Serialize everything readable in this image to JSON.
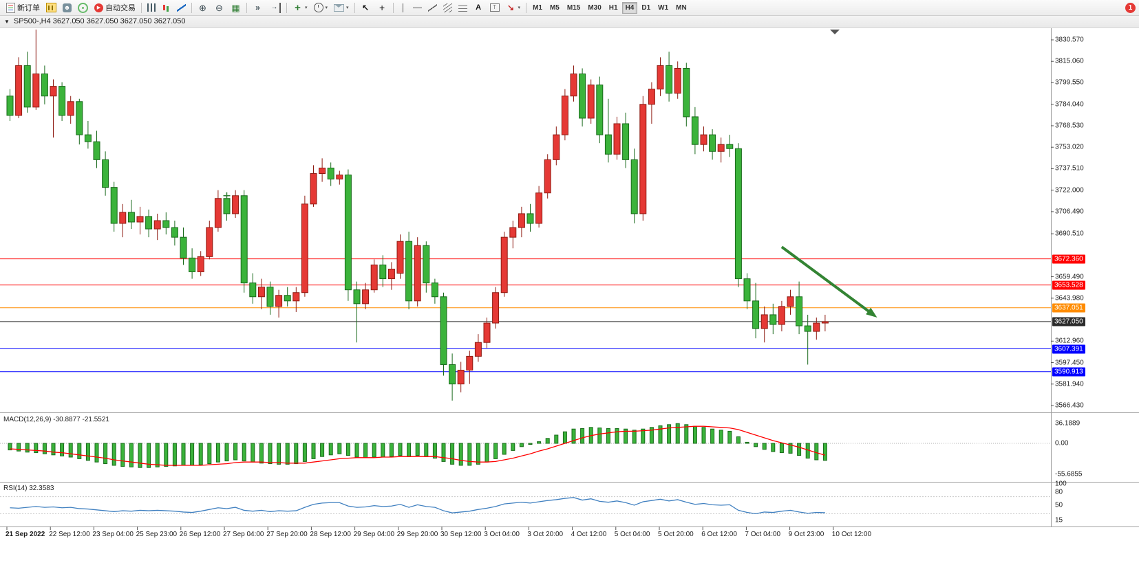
{
  "toolbar": {
    "groups": [
      {
        "name": "trade-group",
        "items": [
          {
            "name": "new-order-button",
            "icon": "new-order",
            "label": "新订单"
          },
          {
            "name": "open-chart-button",
            "icon": "chart-window"
          },
          {
            "name": "market-watch-button",
            "icon": "profile"
          },
          {
            "name": "community-button",
            "icon": "community"
          },
          {
            "name": "algo-trading-button",
            "icon": "autotrade",
            "label": "自动交易"
          }
        ]
      },
      {
        "name": "chart-type-group",
        "items": [
          {
            "name": "bar-chart-button",
            "icon": "bars"
          },
          {
            "name": "candle-chart-button",
            "icon": "candles"
          },
          {
            "name": "line-chart-button",
            "icon": "line"
          }
        ]
      },
      {
        "name": "zoom-group",
        "items": [
          {
            "name": "zoom-in-button",
            "icon": "zoom-in"
          },
          {
            "name": "zoom-out-button",
            "icon": "zoom-out"
          },
          {
            "name": "tile-windows-button",
            "icon": "tiles"
          }
        ]
      },
      {
        "name": "scroll-group",
        "items": [
          {
            "name": "auto-scroll-button",
            "icon": "autoscroll"
          },
          {
            "name": "chart-shift-button",
            "icon": "shift"
          }
        ]
      },
      {
        "name": "insert-group",
        "items": [
          {
            "name": "indicators-button",
            "icon": "indicators",
            "caret": true
          },
          {
            "name": "periods-button",
            "icon": "clock",
            "caret": true
          },
          {
            "name": "templates-button",
            "icon": "mail",
            "caret": true
          }
        ]
      },
      {
        "name": "cursor-group",
        "items": [
          {
            "name": "cursor-button",
            "icon": "cursor"
          },
          {
            "name": "crosshair-button",
            "icon": "crosshair"
          }
        ]
      },
      {
        "name": "objects-group",
        "items": [
          {
            "name": "vertical-line-button",
            "icon": "vline"
          },
          {
            "name": "horizontal-line-button",
            "icon": "hline"
          },
          {
            "name": "trendline-button",
            "icon": "trendline"
          },
          {
            "name": "channel-button",
            "icon": "channel"
          },
          {
            "name": "fibonacci-button",
            "icon": "fibo"
          },
          {
            "name": "text-button",
            "icon": "text"
          },
          {
            "name": "label-button",
            "icon": "label"
          },
          {
            "name": "shapes-button",
            "icon": "shapes",
            "caret": true
          }
        ]
      }
    ],
    "timeframes": {
      "items": [
        "M1",
        "M5",
        "M15",
        "M30",
        "H1",
        "H4",
        "D1",
        "W1",
        "MN"
      ],
      "active": "H4"
    },
    "notification_count": "1"
  },
  "chart": {
    "collapse_glyph": "▼",
    "title": "SP500-,H4  3627.050 3627.050 3627.050 3627.050"
  },
  "chart_data": {
    "type": "candlestick",
    "symbol": "SP500-",
    "timeframe": "H4",
    "ohlc_display": [
      "3627.050",
      "3627.050",
      "3627.050",
      "3627.050"
    ],
    "colors": {
      "up_fill": "#e53935",
      "up_stroke": "#8e1b12",
      "down_fill": "#3bb33b",
      "down_stroke": "#18691a",
      "macd_bar": "#3bb33b",
      "macd_signal": "#ff0000",
      "rsi_line": "#4080c0",
      "arrow": "#338433"
    },
    "price_axis": {
      "labels": [
        "3830.570",
        "3815.060",
        "3799.550",
        "3784.040",
        "3768.530",
        "3753.020",
        "3737.510",
        "3722.000",
        "3706.490",
        "3690.510",
        "3659.490",
        "3643.980",
        "3612.960",
        "3597.450",
        "3581.940",
        "3566.430"
      ],
      "top_value": 3830.57,
      "bottom_value": 3566.43
    },
    "hlines": [
      {
        "price": 3672.36,
        "label": "3672.360",
        "color": "#ff0000"
      },
      {
        "price": 3653.528,
        "label": "3653.528",
        "color": "#ff0000"
      },
      {
        "price": 3637.051,
        "label": "3637.051",
        "color": "#ff8c00"
      },
      {
        "price": 3627.05,
        "label": "3627.050",
        "color": "#2b2b2b",
        "role": "bid"
      },
      {
        "price": 3607.391,
        "label": "3607.391",
        "color": "#0000ff"
      },
      {
        "price": 3590.913,
        "label": "3590.913",
        "color": "#0000ff"
      }
    ],
    "candles": [
      [
        3790,
        3795,
        3772,
        3776
      ],
      [
        3776,
        3818,
        3774,
        3812
      ],
      [
        3812,
        3822,
        3778,
        3782
      ],
      [
        3782,
        3838,
        3780,
        3806
      ],
      [
        3806,
        3812,
        3784,
        3790
      ],
      [
        3790,
        3802,
        3760,
        3797
      ],
      [
        3797,
        3800,
        3772,
        3776
      ],
      [
        3776,
        3790,
        3770,
        3786
      ],
      [
        3786,
        3788,
        3755,
        3762
      ],
      [
        3762,
        3772,
        3752,
        3757
      ],
      [
        3757,
        3765,
        3738,
        3744
      ],
      [
        3744,
        3750,
        3718,
        3724
      ],
      [
        3724,
        3728,
        3692,
        3698
      ],
      [
        3698,
        3712,
        3688,
        3706
      ],
      [
        3706,
        3715,
        3694,
        3699
      ],
      [
        3699,
        3710,
        3690,
        3703
      ],
      [
        3703,
        3708,
        3688,
        3694
      ],
      [
        3694,
        3705,
        3686,
        3700
      ],
      [
        3700,
        3706,
        3690,
        3695
      ],
      [
        3695,
        3700,
        3682,
        3688
      ],
      [
        3688,
        3695,
        3668,
        3673
      ],
      [
        3673,
        3680,
        3658,
        3663
      ],
      [
        3663,
        3678,
        3660,
        3674
      ],
      [
        3674,
        3700,
        3672,
        3695
      ],
      [
        3695,
        3722,
        3692,
        3716
      ],
      [
        3716,
        3720,
        3700,
        3705
      ],
      [
        3705,
        3722,
        3702,
        3718
      ],
      [
        3718,
        3722,
        3648,
        3655
      ],
      [
        3655,
        3662,
        3640,
        3645
      ],
      [
        3645,
        3658,
        3636,
        3652
      ],
      [
        3652,
        3656,
        3632,
        3638
      ],
      [
        3638,
        3650,
        3630,
        3646
      ],
      [
        3646,
        3652,
        3638,
        3642
      ],
      [
        3642,
        3652,
        3634,
        3648
      ],
      [
        3648,
        3718,
        3645,
        3712
      ],
      [
        3712,
        3740,
        3710,
        3734
      ],
      [
        3734,
        3745,
        3728,
        3738
      ],
      [
        3738,
        3742,
        3725,
        3730
      ],
      [
        3730,
        3736,
        3726,
        3733
      ],
      [
        3733,
        3737,
        3642,
        3650
      ],
      [
        3650,
        3656,
        3612,
        3640
      ],
      [
        3640,
        3655,
        3636,
        3650
      ],
      [
        3650,
        3672,
        3648,
        3668
      ],
      [
        3668,
        3675,
        3652,
        3658
      ],
      [
        3658,
        3670,
        3650,
        3665
      ],
      [
        3662,
        3690,
        3658,
        3685
      ],
      [
        3685,
        3692,
        3636,
        3642
      ],
      [
        3642,
        3688,
        3638,
        3682
      ],
      [
        3682,
        3685,
        3648,
        3655
      ],
      [
        3655,
        3658,
        3640,
        3645
      ],
      [
        3645,
        3648,
        3588,
        3596
      ],
      [
        3596,
        3604,
        3570,
        3582
      ],
      [
        3582,
        3598,
        3576,
        3592
      ],
      [
        3592,
        3606,
        3582,
        3602
      ],
      [
        3602,
        3618,
        3598,
        3612
      ],
      [
        3612,
        3630,
        3608,
        3626
      ],
      [
        3626,
        3652,
        3622,
        3648
      ],
      [
        3648,
        3692,
        3645,
        3688
      ],
      [
        3688,
        3700,
        3680,
        3695
      ],
      [
        3695,
        3710,
        3688,
        3705
      ],
      [
        3705,
        3712,
        3692,
        3698
      ],
      [
        3698,
        3725,
        3695,
        3720
      ],
      [
        3720,
        3748,
        3716,
        3744
      ],
      [
        3744,
        3768,
        3740,
        3762
      ],
      [
        3762,
        3795,
        3758,
        3790
      ],
      [
        3790,
        3812,
        3786,
        3806
      ],
      [
        3806,
        3810,
        3768,
        3774
      ],
      [
        3774,
        3802,
        3770,
        3798
      ],
      [
        3798,
        3804,
        3756,
        3762
      ],
      [
        3762,
        3788,
        3742,
        3748
      ],
      [
        3748,
        3775,
        3744,
        3770
      ],
      [
        3770,
        3778,
        3738,
        3744
      ],
      [
        3744,
        3752,
        3698,
        3705
      ],
      [
        3705,
        3790,
        3700,
        3784
      ],
      [
        3784,
        3800,
        3770,
        3795
      ],
      [
        3795,
        3818,
        3790,
        3812
      ],
      [
        3812,
        3822,
        3786,
        3792
      ],
      [
        3792,
        3815,
        3788,
        3810
      ],
      [
        3810,
        3814,
        3768,
        3775
      ],
      [
        3775,
        3782,
        3748,
        3755
      ],
      [
        3755,
        3768,
        3750,
        3762
      ],
      [
        3762,
        3766,
        3744,
        3750
      ],
      [
        3750,
        3760,
        3742,
        3755
      ],
      [
        3755,
        3762,
        3746,
        3752
      ],
      [
        3752,
        3756,
        3652,
        3658
      ],
      [
        3658,
        3662,
        3636,
        3642
      ],
      [
        3642,
        3655,
        3615,
        3622
      ],
      [
        3622,
        3638,
        3612,
        3632
      ],
      [
        3632,
        3640,
        3618,
        3625
      ],
      [
        3625,
        3642,
        3620,
        3638
      ],
      [
        3638,
        3650,
        3632,
        3645
      ],
      [
        3645,
        3656,
        3618,
        3624
      ],
      [
        3624,
        3632,
        3596,
        3620
      ],
      [
        3620,
        3630,
        3614,
        3626
      ],
      [
        3626,
        3632,
        3620,
        3627.05
      ]
    ],
    "arrow": {
      "from": {
        "index": 89,
        "price": 3681
      },
      "to": {
        "index": 100,
        "price": 3630
      },
      "color": "#338433"
    },
    "cross_marker": {
      "index": 25,
      "price": 3718,
      "color": "#2e7d32"
    },
    "macd": {
      "label": "MACD(12,26,9) -30.8877 -21.5521",
      "axis_labels": [
        {
          "text": "36.1889",
          "value": 36.1889
        },
        {
          "text": "0.00",
          "value": 0
        },
        {
          "text": "-55.6855",
          "value": -55.6855
        }
      ],
      "values": [
        -12,
        -14,
        -16,
        -17,
        -19,
        -21,
        -23,
        -25,
        -28,
        -31,
        -34,
        -37,
        -40,
        -42,
        -43,
        -44,
        -44,
        -43,
        -42,
        -41,
        -40,
        -40,
        -39,
        -37,
        -34,
        -32,
        -30,
        -32,
        -34,
        -36,
        -37,
        -38,
        -38,
        -37,
        -33,
        -28,
        -24,
        -21,
        -19,
        -22,
        -25,
        -26,
        -25,
        -25,
        -24,
        -22,
        -24,
        -22,
        -24,
        -27,
        -33,
        -38,
        -40,
        -40,
        -38,
        -34,
        -28,
        -20,
        -13,
        -6,
        -2,
        3,
        9,
        15,
        21,
        26,
        27,
        29,
        28,
        27,
        27,
        26,
        24,
        26,
        29,
        32,
        34,
        36,
        34,
        31,
        29,
        26,
        24,
        22,
        12,
        2,
        -6,
        -11,
        -15,
        -17,
        -18,
        -22,
        -27,
        -30,
        -31
      ],
      "signal": [
        -10,
        -11,
        -12,
        -13,
        -14,
        -16,
        -17,
        -19,
        -21,
        -23,
        -25,
        -27,
        -30,
        -32,
        -34,
        -36,
        -38,
        -39,
        -40,
        -40,
        -40,
        -40,
        -40,
        -39,
        -38,
        -37,
        -35,
        -34,
        -34,
        -34,
        -35,
        -35,
        -36,
        -36,
        -36,
        -34,
        -32,
        -30,
        -28,
        -27,
        -26,
        -26,
        -26,
        -25,
        -25,
        -24,
        -24,
        -24,
        -24,
        -24,
        -26,
        -28,
        -31,
        -33,
        -34,
        -34,
        -33,
        -30,
        -27,
        -23,
        -19,
        -14,
        -10,
        -5,
        0,
        5,
        10,
        14,
        17,
        19,
        21,
        22,
        22,
        23,
        24,
        26,
        28,
        29,
        30,
        31,
        31,
        30,
        29,
        28,
        25,
        20,
        15,
        10,
        5,
        1,
        -3,
        -7,
        -12,
        -17,
        -21.5
      ]
    },
    "rsi": {
      "label": "RSI(14) 32.3583",
      "axis_labels": [
        {
          "text": "100",
          "value": 100
        },
        {
          "text": "80",
          "value": 80
        },
        {
          "text": "50",
          "value": 50
        },
        {
          "text": "15",
          "value": 15
        }
      ],
      "levels": [
        70,
        30
      ],
      "values": [
        44,
        43,
        45,
        47,
        45,
        46,
        44,
        45,
        42,
        41,
        39,
        37,
        35,
        37,
        36,
        38,
        37,
        38,
        37,
        36,
        34,
        33,
        36,
        40,
        44,
        42,
        45,
        38,
        36,
        38,
        35,
        37,
        36,
        37,
        45,
        52,
        55,
        56,
        56,
        48,
        45,
        46,
        49,
        47,
        48,
        52,
        45,
        51,
        47,
        45,
        37,
        32,
        34,
        36,
        40,
        43,
        47,
        53,
        55,
        57,
        55,
        58,
        61,
        63,
        66,
        68,
        62,
        65,
        59,
        57,
        60,
        56,
        50,
        58,
        61,
        64,
        60,
        63,
        57,
        52,
        54,
        51,
        50,
        51,
        38,
        33,
        30,
        34,
        33,
        36,
        38,
        34,
        31,
        33,
        32.36
      ]
    },
    "time_axis": [
      "21 Sep 2022",
      "22 Sep 12:00",
      "23 Sep 04:00",
      "25 Sep 23:00",
      "26 Sep 12:00",
      "27 Sep 04:00",
      "27 Sep 20:00",
      "28 Sep 12:00",
      "29 Sep 04:00",
      "29 Sep 20:00",
      "30 Sep 12:00",
      "3 Oct 04:00",
      "3 Oct 20:00",
      "4 Oct 12:00",
      "5 Oct 04:00",
      "5 Oct 20:00",
      "6 Oct 12:00",
      "7 Oct 04:00",
      "9 Oct 23:00",
      "10 Oct 12:00"
    ]
  }
}
